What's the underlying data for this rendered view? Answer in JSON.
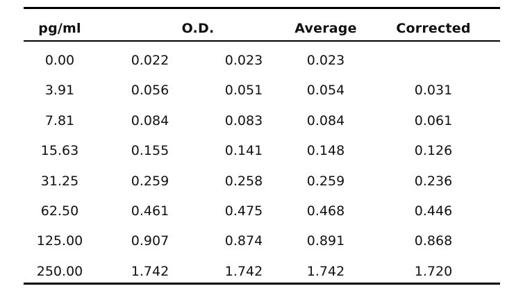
{
  "table": {
    "headers": {
      "concentration": "pg/ml",
      "od": "O.D.",
      "average": "Average",
      "corrected": "Corrected"
    },
    "rows": [
      [
        "0.00",
        "0.022",
        "0.023",
        "0.023",
        ""
      ],
      [
        "3.91",
        "0.056",
        "0.051",
        "0.054",
        "0.031"
      ],
      [
        "7.81",
        "0.084",
        "0.083",
        "0.084",
        "0.061"
      ],
      [
        "15.63",
        "0.155",
        "0.141",
        "0.148",
        "0.126"
      ],
      [
        "31.25",
        "0.259",
        "0.258",
        "0.259",
        "0.236"
      ],
      [
        "62.50",
        "0.461",
        "0.475",
        "0.468",
        "0.446"
      ],
      [
        "125.00",
        "0.907",
        "0.874",
        "0.891",
        "0.868"
      ],
      [
        "250.00",
        "1.742",
        "1.742",
        "1.742",
        "1.720"
      ]
    ]
  }
}
